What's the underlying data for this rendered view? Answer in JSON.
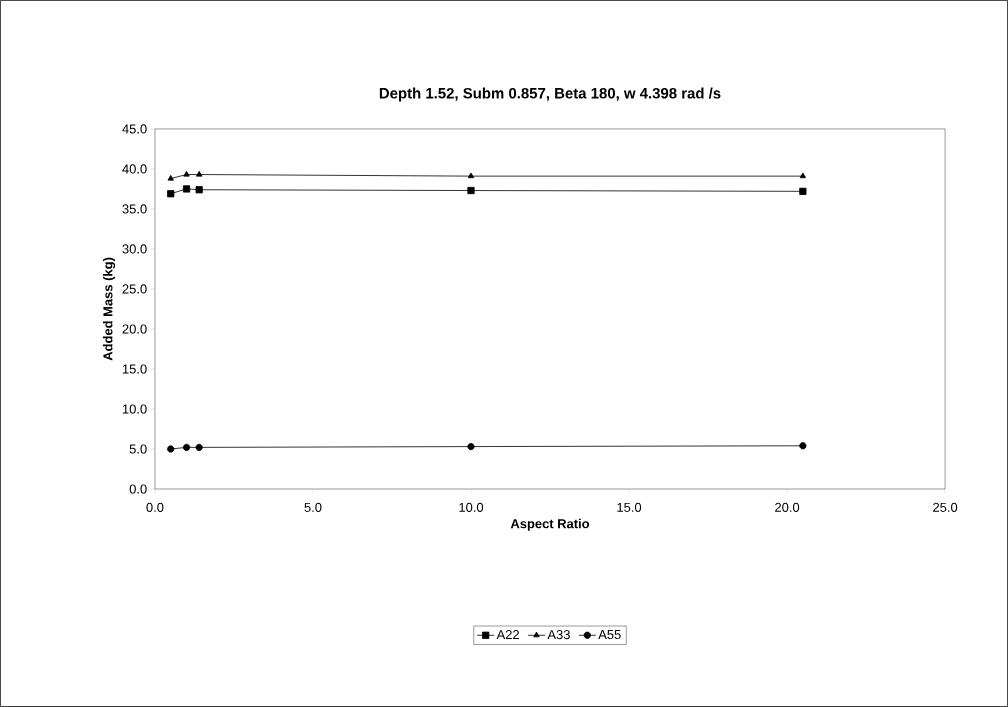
{
  "chart_data": {
    "type": "line",
    "title": "Depth 1.52, Subm 0.857, Beta 180, w 4.398 rad /s",
    "xlabel": "Aspect Ratio",
    "ylabel": "Added Mass (kg)",
    "x": [
      0.5,
      1.0,
      1.4,
      10.0,
      20.5
    ],
    "series": [
      {
        "name": "A22",
        "color": "#000000",
        "marker": "square",
        "values": [
          36.9,
          37.5,
          37.4,
          37.3,
          37.2
        ]
      },
      {
        "name": "A33",
        "color": "#000000",
        "marker": "triangle",
        "values": [
          38.8,
          39.3,
          39.3,
          39.1,
          39.1
        ]
      },
      {
        "name": "A55",
        "color": "#000000",
        "marker": "circle",
        "values": [
          5.0,
          5.2,
          5.2,
          5.3,
          5.4
        ]
      }
    ],
    "xlim": [
      0,
      25
    ],
    "xticks": [
      {
        "value": 0,
        "label": "0.0"
      },
      {
        "value": 5,
        "label": "5.0"
      },
      {
        "value": 10,
        "label": "10.0"
      },
      {
        "value": 15,
        "label": "15.0"
      },
      {
        "value": 20,
        "label": "20.0"
      },
      {
        "value": 25,
        "label": "25.0"
      }
    ],
    "ylim": [
      0,
      45
    ],
    "yticks": [
      {
        "value": 0,
        "label": "0.0"
      },
      {
        "value": 5,
        "label": "5.0"
      },
      {
        "value": 10,
        "label": "10.0"
      },
      {
        "value": 15,
        "label": "15.0"
      },
      {
        "value": 20,
        "label": "20.0"
      },
      {
        "value": 25,
        "label": "25.0"
      },
      {
        "value": 30,
        "label": "30.0"
      },
      {
        "value": 35,
        "label": "35.0"
      },
      {
        "value": 40,
        "label": "40.0"
      },
      {
        "value": 45,
        "label": "45.0"
      }
    ],
    "grid": false,
    "legend": "bottom",
    "line_style": "solid"
  }
}
